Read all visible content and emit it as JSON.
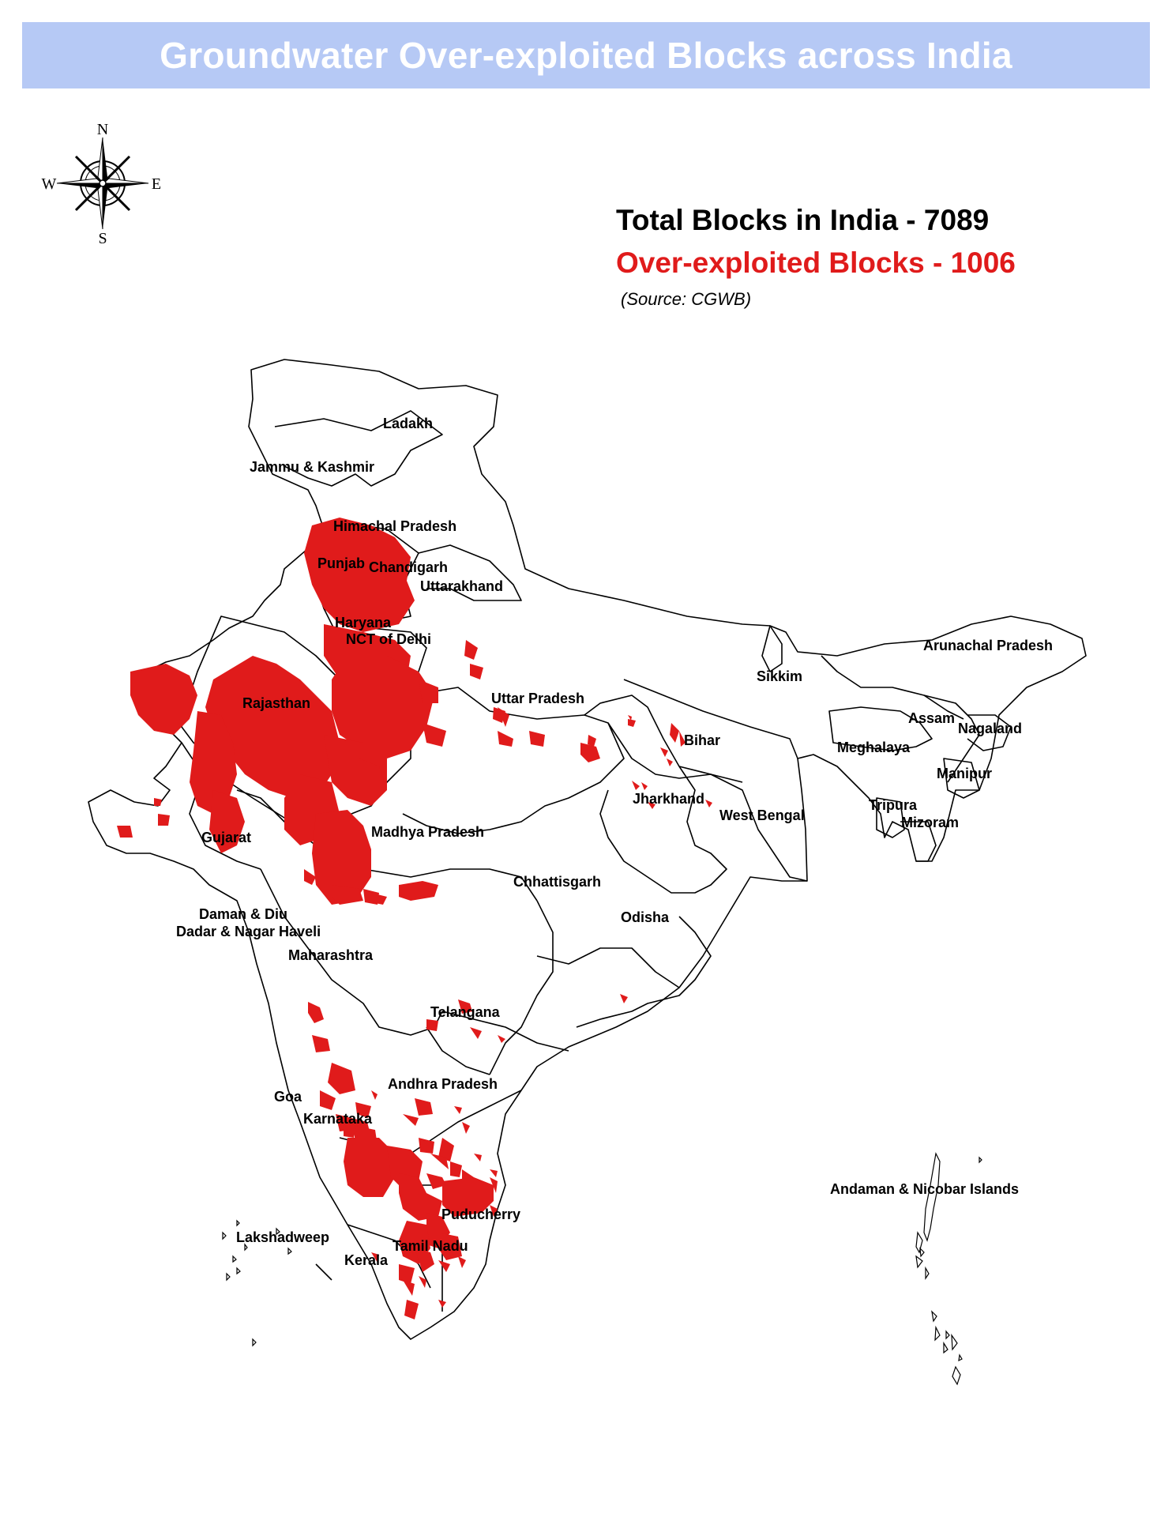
{
  "title": "Groundwater Over-exploited Blocks across India",
  "stats": {
    "total": "Total Blocks in India - 7089",
    "over_exploited": "Over-exploited Blocks - 1006",
    "source": "(Source: CGWB)"
  },
  "compass": {
    "n": "N",
    "s": "S",
    "e": "E",
    "w": "W"
  },
  "colors": {
    "banner": "#b6c9f5",
    "highlight": "#e01b1b",
    "outline": "#000000"
  },
  "map": {
    "labels": {
      "ladakh": "Ladakh",
      "jk": "Jammu & Kashmir",
      "himachal": "Himachal Pradesh",
      "punjab": "Punjab",
      "chandigarh": "Chandigarh",
      "uttarakhand": "Uttarakhand",
      "haryana": "Haryana",
      "delhi": "NCT of Delhi",
      "rajasthan": "Rajasthan",
      "up": "Uttar Pradesh",
      "arunachal": "Arunachal Pradesh",
      "sikkim": "Sikkim",
      "assam": "Assam",
      "nagaland": "Nagaland",
      "meghalaya": "Meghalaya",
      "manipur": "Manipur",
      "tripura": "Tripura",
      "mizoram": "Mizoram",
      "bihar": "Bihar",
      "jharkhand": "Jharkhand",
      "west_bengal": "West Bengal",
      "gujarat": "Gujarat",
      "mp": "Madhya Pradesh",
      "chhattisgarh": "Chhattisgarh",
      "odisha": "Odisha",
      "daman": "Daman & Diu",
      "dadar": "Dadar & Nagar Haveli",
      "maharashtra": "Maharashtra",
      "telangana": "Telangana",
      "andhra": "Andhra Pradesh",
      "goa": "Goa",
      "karnataka": "Karnataka",
      "puducherry": "Puducherry",
      "lakshadweep": "Lakshadweep",
      "tamil_nadu": "Tamil Nadu",
      "kerala": "Kerala",
      "andaman": "Andaman & Nicobar Islands"
    }
  }
}
